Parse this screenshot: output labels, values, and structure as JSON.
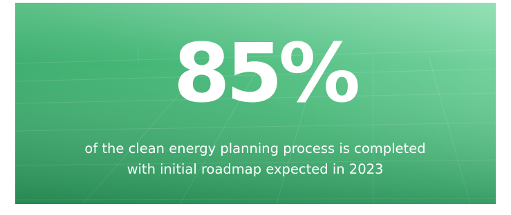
{
  "stat": "85%",
  "caption": [
    "of the clean energy planning process is completed",
    "with initial roadmap expected in 2023"
  ]
}
